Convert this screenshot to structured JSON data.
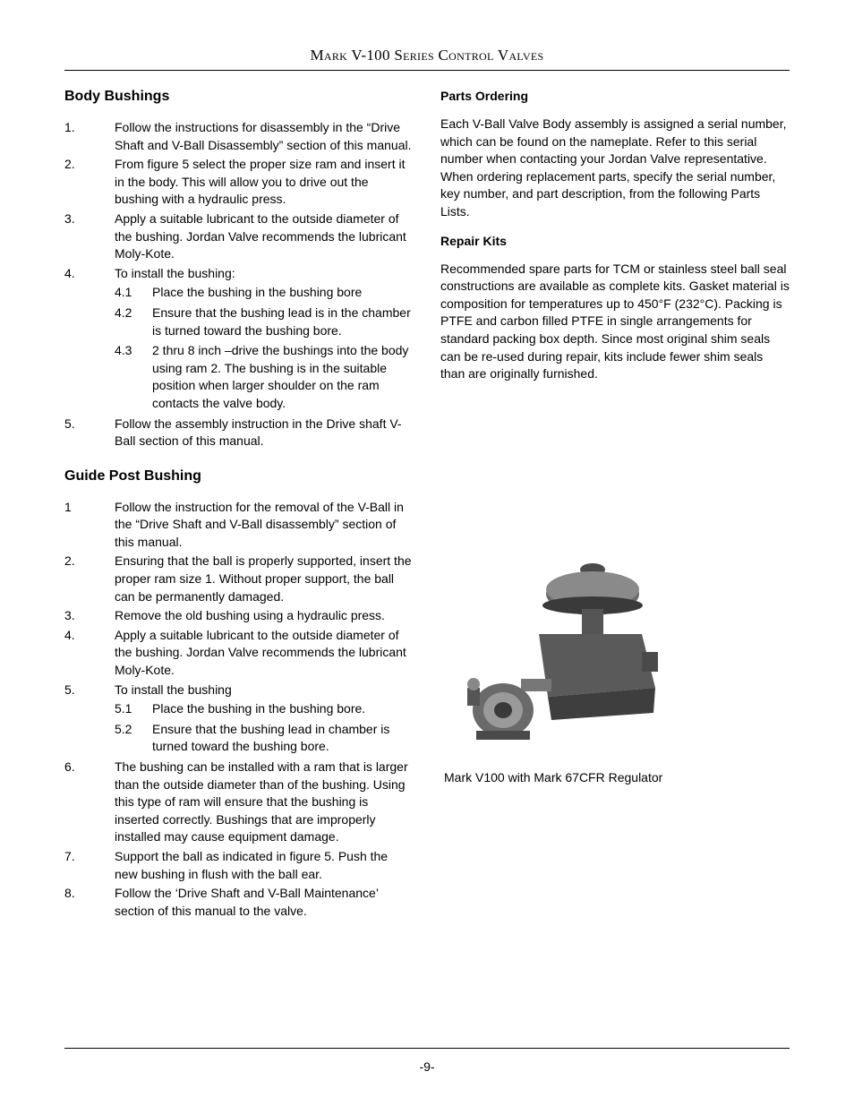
{
  "header": {
    "title_html": "M<span class='sc'>ark</span> V-100 S<span class='sc'>eries</span> C<span class='sc'>ontrol</span> V<span class='sc'>alves</span>"
  },
  "left": {
    "section1": {
      "heading": "Body Bushings",
      "items": [
        {
          "n": "1.",
          "t": "Follow the instructions for disassembly in the “Drive Shaft and V-Ball Disassembly” section of this manual."
        },
        {
          "n": "2.",
          "t": "From figure 5 select the proper size ram and insert it in the body.  This will allow you to drive out the bushing with a hydraulic press."
        },
        {
          "n": "3.",
          "t": "Apply a suitable lubricant to the outside diameter of the bushing.  Jordan Valve recommends the lubricant Moly-Kote."
        },
        {
          "n": "4.",
          "t": "To install the bushing:",
          "sub": [
            {
              "n": "4.1",
              "t": "Place the bushing in the bushing bore"
            },
            {
              "n": "4.2",
              "t": "Ensure that the bushing lead is in the chamber is turned toward the bushing bore."
            },
            {
              "n": "4.3",
              "t": "2 thru 8 inch –drive the bushings into the body using ram 2.  The bushing is in the suitable position when larger shoulder on the ram contacts the valve body."
            }
          ]
        },
        {
          "n": "5.",
          "t": "Follow the assembly instruction in the Drive shaft V-Ball section of this manual."
        }
      ]
    },
    "section2": {
      "heading": "Guide Post Bushing",
      "items": [
        {
          "n": "1",
          "t": "Follow the instruction for the removal of the V-Ball in the “Drive Shaft and V-Ball disassembly” section of this manual."
        },
        {
          "n": "2.",
          "t": "Ensuring that the ball is properly supported, insert the proper ram size 1.  Without proper support, the ball can be permanently damaged."
        },
        {
          "n": "3.",
          "t": "Remove the old bushing using a hydraulic press."
        },
        {
          "n": "4.",
          "t": "Apply a suitable lubricant to the outside diameter of the bushing.  Jordan Valve recommends the lubricant Moly-Kote."
        },
        {
          "n": "5.",
          "t": "To install the bushing",
          "sub": [
            {
              "n": "5.1",
              "t": "Place the bushing in the bushing bore."
            },
            {
              "n": "5.2",
              "t": "Ensure that the bushing lead in chamber is turned toward the bushing bore."
            }
          ]
        },
        {
          "n": "6.",
          "t": "The bushing can be installed with a ram that is larger than the outside diameter than of the bushing.  Using this type of ram will ensure that the bushing is inserted correctly. Bushings that are improperly installed  may cause equipment damage."
        },
        {
          "n": "7.",
          "t": "Support the ball as indicated in figure 5.  Push the new bushing in flush with the ball ear."
        },
        {
          "n": "8.",
          "t": "Follow the ‘Drive Shaft and V-Ball Maintenance’ section of this manual to the valve."
        }
      ]
    }
  },
  "right": {
    "parts": {
      "heading": "Parts Ordering",
      "p1": "Each V-Ball Valve Body assembly is assigned a serial number, which can be found on the nameplate.  Refer to this serial number when contacting your Jordan Valve representative.",
      "p2": "When ordering replacement parts, specify the serial number, key number, and part description, from the following Parts Lists."
    },
    "repair": {
      "heading": "Repair Kits",
      "p1": "Recommended spare parts for TCM or stainless steel ball seal constructions are available as complete kits.  Gasket material is composition for temperatures up to 450°F (232°C).  Packing is PTFE and carbon filled PTFE in single arrangements for standard packing box depth.  Since most original shim seals can be re-used during repair, kits include fewer shim seals than are originally furnished."
    },
    "figure": {
      "caption": "Mark V100 with Mark 67CFR Regulator"
    }
  },
  "page_number": "-9-",
  "colors": {
    "text": "#000000",
    "rule": "#000000",
    "valve_body": "#5a5a5a",
    "valve_light": "#bdbdbd",
    "valve_dark": "#2f2f2f"
  }
}
